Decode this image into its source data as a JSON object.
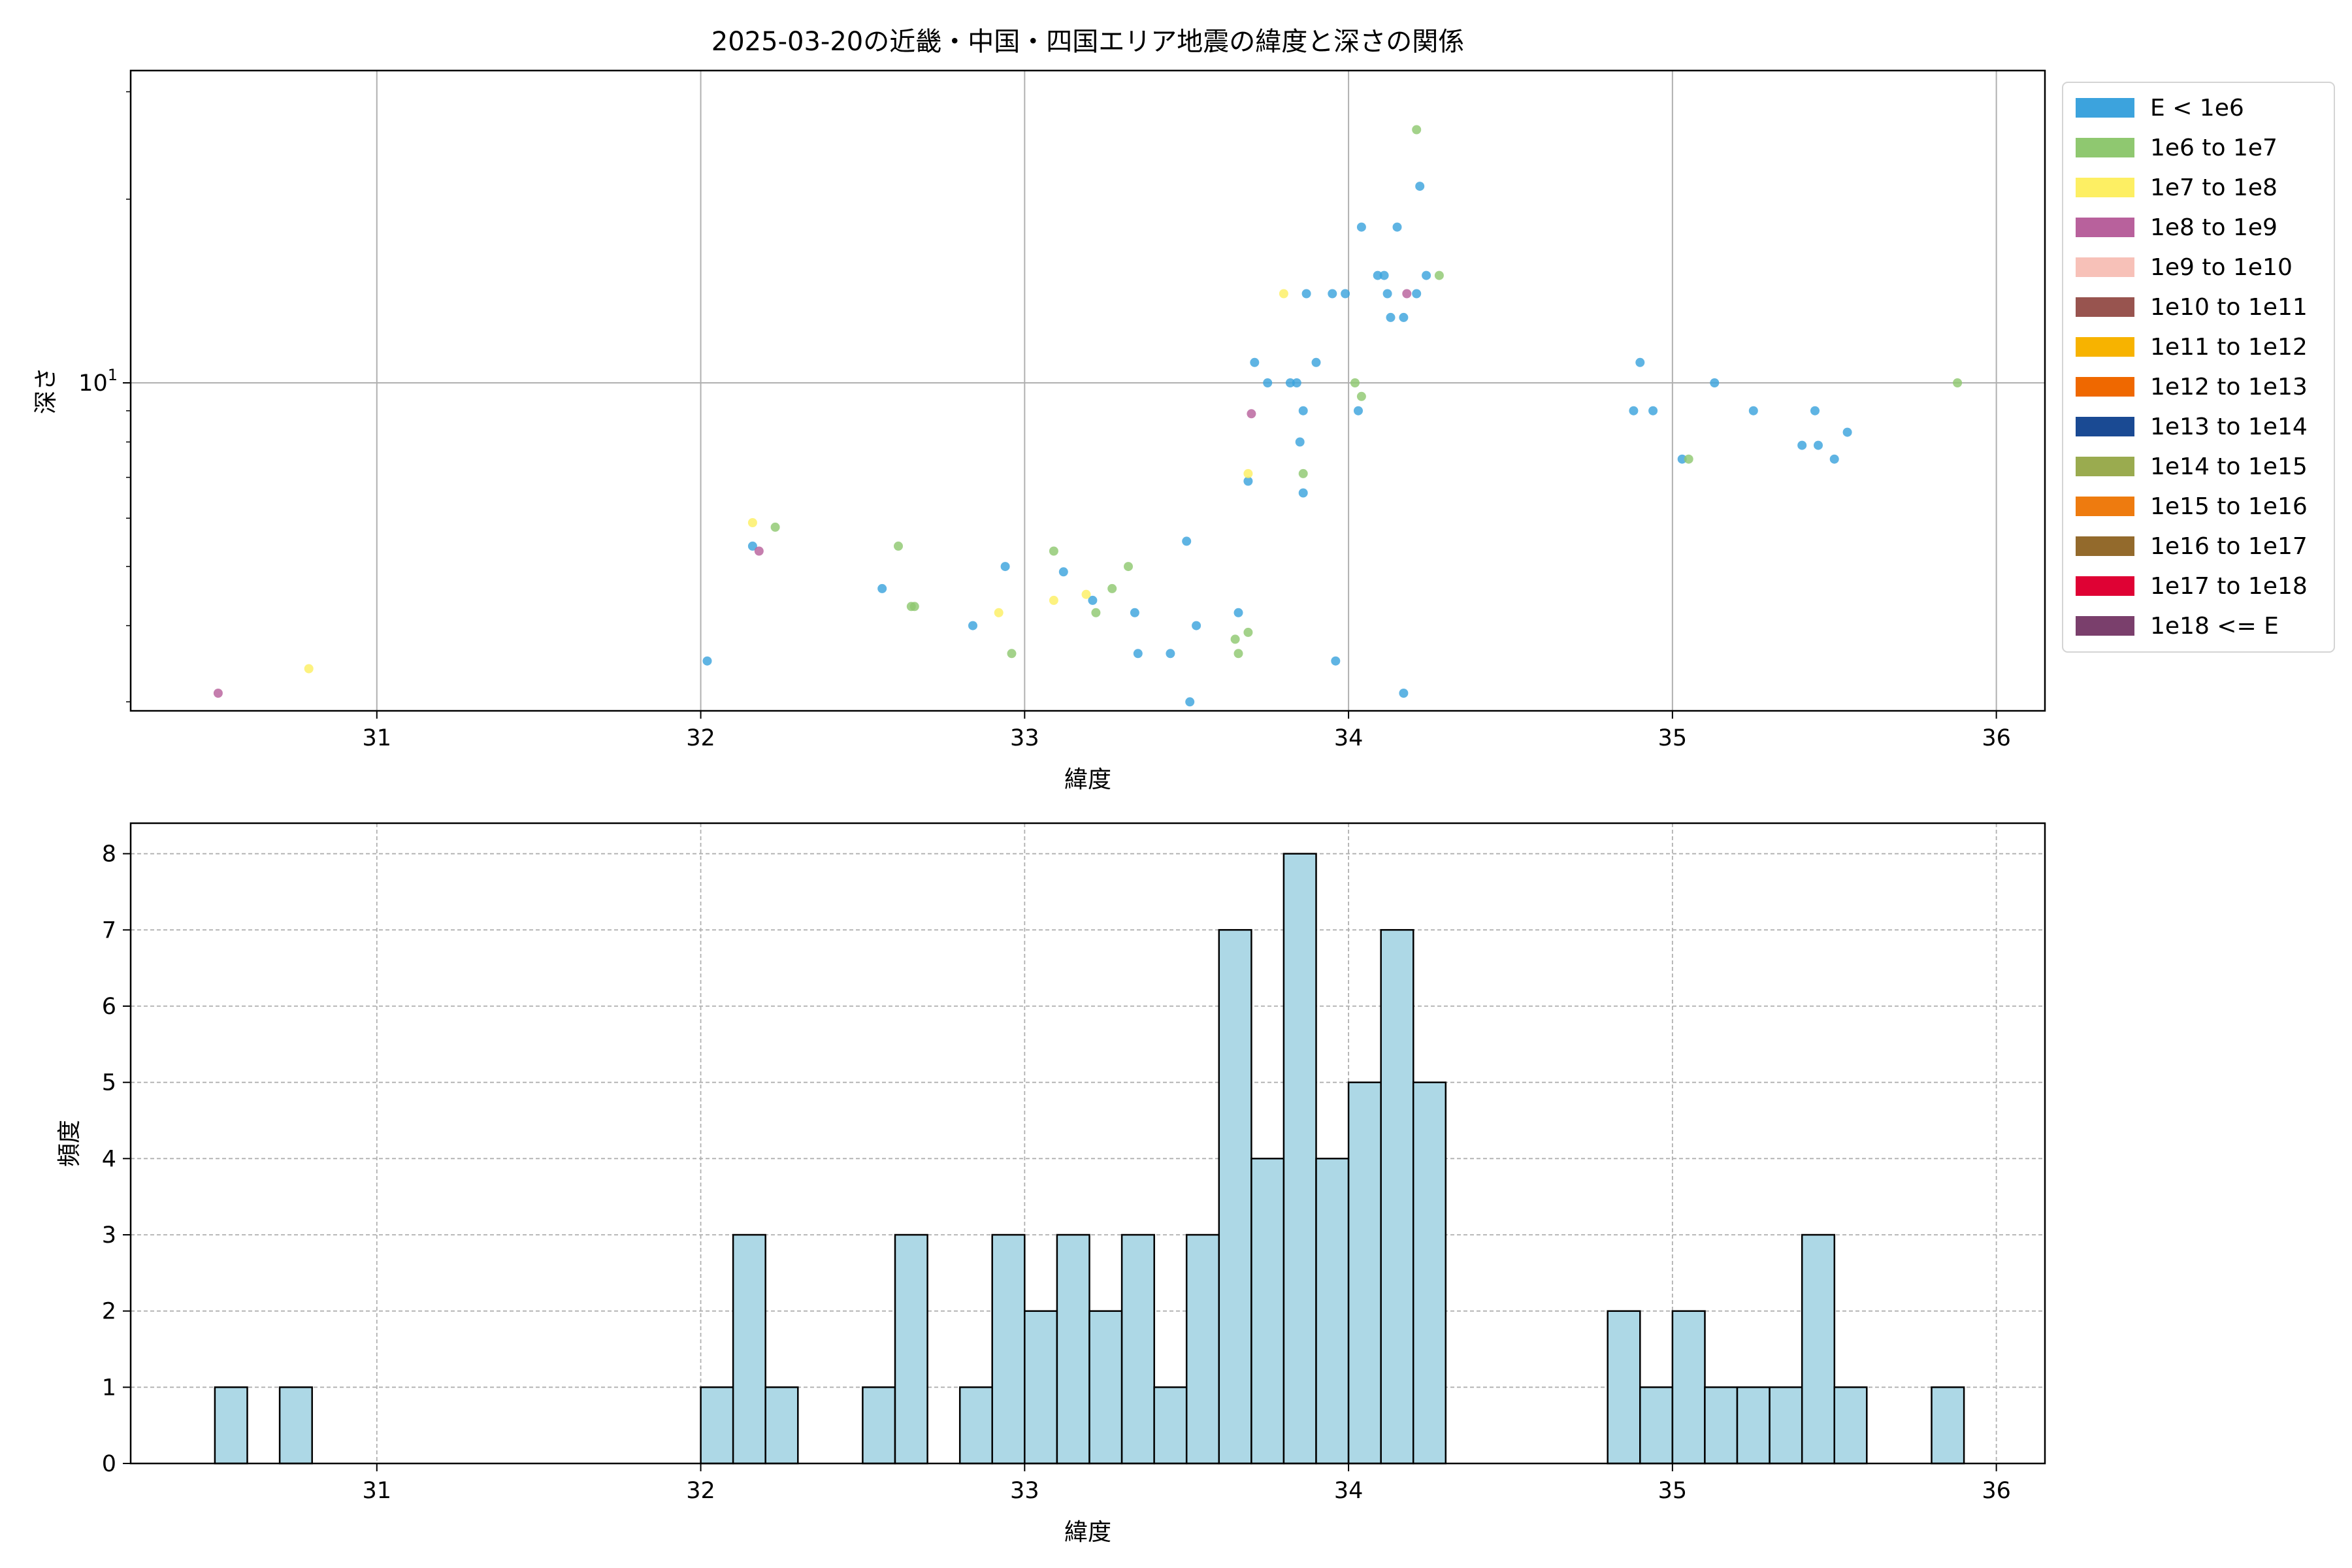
{
  "chart_data": [
    {
      "type": "scatter",
      "title": "2025-03-20の近畿・中国・四国エリア地震の緯度と深さの関係",
      "xlabel": "緯度",
      "ylabel": "深さ",
      "yscale": "log",
      "xlim": [
        30.24,
        36.15
      ],
      "ylim": [
        2.9,
        32.5
      ],
      "xticks": [
        "31",
        "32",
        "33",
        "34",
        "35",
        "36"
      ],
      "xtick_values": [
        31,
        32,
        33,
        34,
        35,
        36
      ],
      "yticks": [
        "10"
      ],
      "ytick_labels": [
        {
          "base": "10",
          "exp": "1"
        }
      ],
      "ytick_values": [
        10
      ],
      "grid": true,
      "legend_position": "outside-right",
      "legend": [
        {
          "label": "E < 1e6",
          "color": "#3ca3dd"
        },
        {
          "label": "1e6 to 1e7",
          "color": "#8fc870"
        },
        {
          "label": "1e7 to 1e8",
          "color": "#fdef63"
        },
        {
          "label": "1e8 to 1e9",
          "color": "#b8619c"
        },
        {
          "label": "1e9 to 1e10",
          "color": "#f7c1b8"
        },
        {
          "label": "1e10 to 1e11",
          "color": "#98544f"
        },
        {
          "label": "1e11 to 1e12",
          "color": "#f7b300"
        },
        {
          "label": "1e12 to 1e13",
          "color": "#ef6800"
        },
        {
          "label": "1e13 to 1e14",
          "color": "#1a4a93"
        },
        {
          "label": "1e14 to 1e15",
          "color": "#9aab4f"
        },
        {
          "label": "1e15 to 1e16",
          "color": "#ee7b0f"
        },
        {
          "label": "1e16 to 1e17",
          "color": "#936a2c"
        },
        {
          "label": "1e17 to 1e18",
          "color": "#df0234"
        },
        {
          "label": "1e18 <= E",
          "color": "#7a3f6c"
        }
      ],
      "series": [
        {
          "name": "E < 1e6",
          "points": [
            [
              32.02,
              3.5
            ],
            [
              32.16,
              5.4
            ],
            [
              32.56,
              4.6
            ],
            [
              32.84,
              4.0
            ],
            [
              32.94,
              5.0
            ],
            [
              33.12,
              4.9
            ],
            [
              33.21,
              4.4
            ],
            [
              33.34,
              4.2
            ],
            [
              33.35,
              3.6
            ],
            [
              33.45,
              3.6
            ],
            [
              33.5,
              5.5
            ],
            [
              33.51,
              3.0
            ],
            [
              33.53,
              4.0
            ],
            [
              33.66,
              4.2
            ],
            [
              33.69,
              6.9
            ],
            [
              33.71,
              10.8
            ],
            [
              33.75,
              10.0
            ],
            [
              33.82,
              10.0
            ],
            [
              33.84,
              10.0
            ],
            [
              33.85,
              8.0
            ],
            [
              33.86,
              9.0
            ],
            [
              33.86,
              6.6
            ],
            [
              33.87,
              14.0
            ],
            [
              33.9,
              10.8
            ],
            [
              33.95,
              14.0
            ],
            [
              33.96,
              3.5
            ],
            [
              33.99,
              14.0
            ],
            [
              34.03,
              9.0
            ],
            [
              34.04,
              18.0
            ],
            [
              34.09,
              15.0
            ],
            [
              34.11,
              15.0
            ],
            [
              34.12,
              14.0
            ],
            [
              34.13,
              12.8
            ],
            [
              34.15,
              18.0
            ],
            [
              34.17,
              3.1
            ],
            [
              34.17,
              12.8
            ],
            [
              34.21,
              14.0
            ],
            [
              34.22,
              21.0
            ],
            [
              34.24,
              15.0
            ],
            [
              34.88,
              9.0
            ],
            [
              34.9,
              10.8
            ],
            [
              34.94,
              9.0
            ],
            [
              35.03,
              7.5
            ],
            [
              35.13,
              10.0
            ],
            [
              35.25,
              9.0
            ],
            [
              35.4,
              7.9
            ],
            [
              35.44,
              9.0
            ],
            [
              35.45,
              7.9
            ],
            [
              35.5,
              7.5
            ],
            [
              35.54,
              8.3
            ]
          ]
        },
        {
          "name": "1e6 to 1e7",
          "points": [
            [
              32.23,
              5.8
            ],
            [
              32.61,
              5.4
            ],
            [
              32.65,
              4.3
            ],
            [
              32.66,
              4.3
            ],
            [
              32.96,
              3.6
            ],
            [
              33.09,
              5.3
            ],
            [
              33.22,
              4.2
            ],
            [
              33.27,
              4.6
            ],
            [
              33.32,
              5.0
            ],
            [
              33.65,
              3.8
            ],
            [
              33.66,
              3.6
            ],
            [
              33.69,
              3.9
            ],
            [
              33.86,
              7.1
            ],
            [
              34.02,
              10.0
            ],
            [
              34.04,
              9.5
            ],
            [
              34.21,
              26.0
            ],
            [
              34.28,
              15.0
            ],
            [
              35.05,
              7.5
            ],
            [
              35.88,
              10.0
            ]
          ]
        },
        {
          "name": "1e7 to 1e8",
          "points": [
            [
              30.79,
              3.4
            ],
            [
              32.16,
              5.9
            ],
            [
              32.92,
              4.2
            ],
            [
              33.09,
              4.4
            ],
            [
              33.19,
              4.5
            ],
            [
              33.69,
              7.1
            ],
            [
              33.8,
              14.0
            ]
          ]
        },
        {
          "name": "1e8 to 1e9",
          "points": [
            [
              30.51,
              3.1
            ],
            [
              32.18,
              5.3
            ],
            [
              33.7,
              8.9
            ],
            [
              34.18,
              14.0
            ]
          ]
        }
      ]
    },
    {
      "type": "bar",
      "title": "",
      "xlabel": "緯度",
      "ylabel": "頻度",
      "xlim": [
        30.24,
        36.15
      ],
      "ylim": [
        0,
        8.4
      ],
      "xticks": [
        "31",
        "32",
        "33",
        "34",
        "35",
        "36"
      ],
      "xtick_values": [
        31,
        32,
        33,
        34,
        35,
        36
      ],
      "yticks": [
        "0",
        "1",
        "2",
        "3",
        "4",
        "5",
        "6",
        "7",
        "8"
      ],
      "ytick_values": [
        0,
        1,
        2,
        3,
        4,
        5,
        6,
        7,
        8
      ],
      "grid": true,
      "bar_color": "#add8e6",
      "bin_width": 0.1,
      "bins": [
        [
          30.5,
          1
        ],
        [
          30.7,
          1
        ],
        [
          32.0,
          1
        ],
        [
          32.1,
          3
        ],
        [
          32.2,
          1
        ],
        [
          32.5,
          1
        ],
        [
          32.6,
          3
        ],
        [
          32.8,
          1
        ],
        [
          32.9,
          3
        ],
        [
          33.0,
          2
        ],
        [
          33.1,
          3
        ],
        [
          33.2,
          2
        ],
        [
          33.3,
          3
        ],
        [
          33.4,
          1
        ],
        [
          33.5,
          3
        ],
        [
          33.6,
          7
        ],
        [
          33.7,
          4
        ],
        [
          33.8,
          8
        ],
        [
          33.9,
          4
        ],
        [
          34.0,
          5
        ],
        [
          34.1,
          7
        ],
        [
          34.2,
          5
        ],
        [
          34.8,
          2
        ],
        [
          34.9,
          1
        ],
        [
          35.0,
          2
        ],
        [
          35.1,
          1
        ],
        [
          35.2,
          1
        ],
        [
          35.3,
          1
        ],
        [
          35.4,
          3
        ],
        [
          35.5,
          1
        ],
        [
          35.8,
          1
        ]
      ]
    }
  ]
}
